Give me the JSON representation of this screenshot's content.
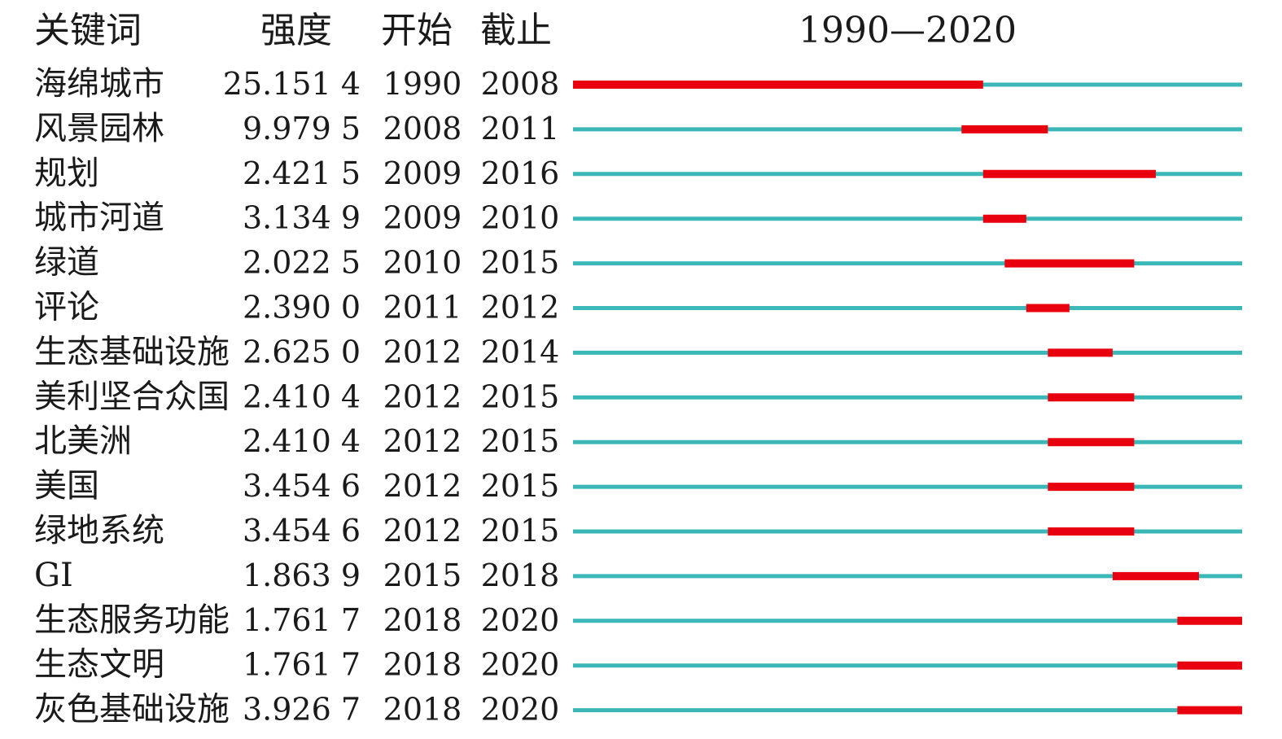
{
  "chart_data": {
    "type": "timeline",
    "title": "1990—2020",
    "headers": {
      "keyword": "关键词",
      "strength": "强度",
      "begin": "开始",
      "end": "截止"
    },
    "year_range": [
      1990,
      2020
    ],
    "rows": [
      {
        "keyword": "海绵城市",
        "strength": "25.151 4",
        "begin": "1990",
        "end": "2008"
      },
      {
        "keyword": "风景园林",
        "strength": "9.979 5",
        "begin": "2008",
        "end": "2011"
      },
      {
        "keyword": "规划",
        "strength": "2.421 5",
        "begin": "2009",
        "end": "2016"
      },
      {
        "keyword": "城市河道",
        "strength": "3.134 9",
        "begin": "2009",
        "end": "2010"
      },
      {
        "keyword": "绿道",
        "strength": "2.022 5",
        "begin": "2010",
        "end": "2015"
      },
      {
        "keyword": "评论",
        "strength": "2.390 0",
        "begin": "2011",
        "end": "2012"
      },
      {
        "keyword": "生态基础设施",
        "strength": "2.625 0",
        "begin": "2012",
        "end": "2014"
      },
      {
        "keyword": "美利坚合众国",
        "strength": "2.410 4",
        "begin": "2012",
        "end": "2015"
      },
      {
        "keyword": "北美洲",
        "strength": "2.410 4",
        "begin": "2012",
        "end": "2015"
      },
      {
        "keyword": "美国",
        "strength": "3.454 6",
        "begin": "2012",
        "end": "2015"
      },
      {
        "keyword": "绿地系统",
        "strength": "3.454 6",
        "begin": "2012",
        "end": "2015"
      },
      {
        "keyword": "GI",
        "strength": "1.863 9",
        "begin": "2015",
        "end": "2018"
      },
      {
        "keyword": "生态服务功能",
        "strength": "1.761 7",
        "begin": "2018",
        "end": "2020"
      },
      {
        "keyword": "生态文明",
        "strength": "1.761 7",
        "begin": "2018",
        "end": "2020"
      },
      {
        "keyword": "灰色基础设施",
        "strength": "3.926 7",
        "begin": "2018",
        "end": "2020"
      }
    ],
    "colors": {
      "timeline": "#3bb7b7",
      "burst": "#e8000e",
      "text": "#1a1a1a"
    }
  }
}
